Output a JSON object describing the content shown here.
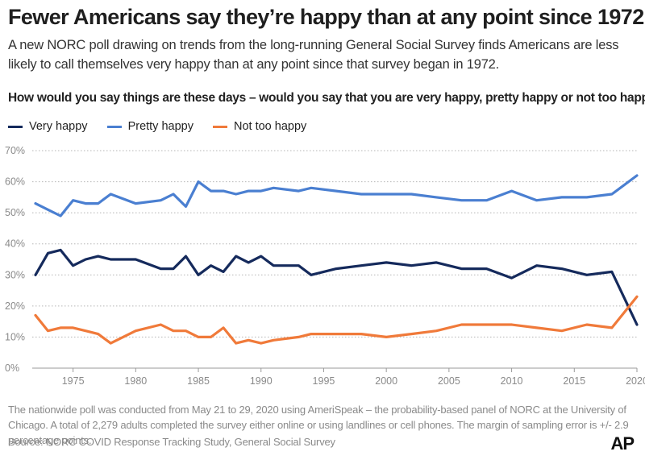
{
  "header": {
    "title": "Fewer Americans say they’re happy than at any point since 1972",
    "subtitle": "A new NORC poll drawing on trends from the long-running General Social Survey finds Americans are less likely to call themselves very happy than at any point since that survey began in 1972.",
    "question": "How would you say things are these days – would you say that you are very happy, pretty happy or not too happy?"
  },
  "footer": {
    "note": "The nationwide poll was conducted from May 21 to 29, 2020 using AmeriSpeak – the probability-based panel of NORC at the University of Chicago. A total of 2,279 adults completed the survey either online or using landlines or cell phones. The margin of sampling error is +/- 2.9 percentage points.",
    "source": "Source: NORC COVID Response Tracking Study, General Social Survey",
    "logo": "AP"
  },
  "chart_data": {
    "type": "line",
    "title": "Fewer Americans say they’re happy than at any point since 1972",
    "xlabel": "",
    "ylabel": "",
    "xlim": [
      1972,
      2020
    ],
    "ylim": [
      0,
      70
    ],
    "x_ticks": [
      1975,
      1980,
      1985,
      1990,
      1995,
      2000,
      2005,
      2010,
      2015,
      2020
    ],
    "y_ticks": [
      0,
      10,
      20,
      30,
      40,
      50,
      60,
      70
    ],
    "y_tick_labels": [
      "0%",
      "10%",
      "20%",
      "30%",
      "40%",
      "50%",
      "60%",
      "70%"
    ],
    "grid": "horizontal-dotted",
    "legend_position": "top-left",
    "series": [
      {
        "name": "Very happy",
        "color": "#152a5c",
        "points": [
          [
            1972,
            30
          ],
          [
            1973,
            37
          ],
          [
            1974,
            38
          ],
          [
            1975,
            33
          ],
          [
            1976,
            35
          ],
          [
            1977,
            36
          ],
          [
            1978,
            35
          ],
          [
            1980,
            35
          ],
          [
            1982,
            32
          ],
          [
            1983,
            32
          ],
          [
            1984,
            36
          ],
          [
            1985,
            30
          ],
          [
            1986,
            33
          ],
          [
            1987,
            31
          ],
          [
            1988,
            36
          ],
          [
            1989,
            34
          ],
          [
            1990,
            36
          ],
          [
            1991,
            33
          ],
          [
            1993,
            33
          ],
          [
            1994,
            30
          ],
          [
            1996,
            32
          ],
          [
            1998,
            33
          ],
          [
            2000,
            34
          ],
          [
            2002,
            33
          ],
          [
            2004,
            34
          ],
          [
            2006,
            32
          ],
          [
            2008,
            32
          ],
          [
            2010,
            29
          ],
          [
            2012,
            33
          ],
          [
            2014,
            32
          ],
          [
            2016,
            30
          ],
          [
            2018,
            31
          ],
          [
            2020,
            14
          ]
        ]
      },
      {
        "name": "Pretty happy",
        "color": "#4a7fd1",
        "points": [
          [
            1972,
            53
          ],
          [
            1973,
            51
          ],
          [
            1974,
            49
          ],
          [
            1975,
            54
          ],
          [
            1976,
            53
          ],
          [
            1977,
            53
          ],
          [
            1978,
            56
          ],
          [
            1980,
            53
          ],
          [
            1982,
            54
          ],
          [
            1983,
            56
          ],
          [
            1984,
            52
          ],
          [
            1985,
            60
          ],
          [
            1986,
            57
          ],
          [
            1987,
            57
          ],
          [
            1988,
            56
          ],
          [
            1989,
            57
          ],
          [
            1990,
            57
          ],
          [
            1991,
            58
          ],
          [
            1993,
            57
          ],
          [
            1994,
            58
          ],
          [
            1996,
            57
          ],
          [
            1998,
            56
          ],
          [
            2000,
            56
          ],
          [
            2002,
            56
          ],
          [
            2004,
            55
          ],
          [
            2006,
            54
          ],
          [
            2008,
            54
          ],
          [
            2010,
            57
          ],
          [
            2012,
            54
          ],
          [
            2014,
            55
          ],
          [
            2016,
            55
          ],
          [
            2018,
            56
          ],
          [
            2020,
            62
          ]
        ]
      },
      {
        "name": "Not too happy",
        "color": "#f07a3a",
        "points": [
          [
            1972,
            17
          ],
          [
            1973,
            12
          ],
          [
            1974,
            13
          ],
          [
            1975,
            13
          ],
          [
            1976,
            12
          ],
          [
            1977,
            11
          ],
          [
            1978,
            8
          ],
          [
            1980,
            12
          ],
          [
            1982,
            14
          ],
          [
            1983,
            12
          ],
          [
            1984,
            12
          ],
          [
            1985,
            10
          ],
          [
            1986,
            10
          ],
          [
            1987,
            13
          ],
          [
            1988,
            8
          ],
          [
            1989,
            9
          ],
          [
            1990,
            8
          ],
          [
            1991,
            9
          ],
          [
            1993,
            10
          ],
          [
            1994,
            11
          ],
          [
            1996,
            11
          ],
          [
            1998,
            11
          ],
          [
            2000,
            10
          ],
          [
            2002,
            11
          ],
          [
            2004,
            12
          ],
          [
            2006,
            14
          ],
          [
            2008,
            14
          ],
          [
            2010,
            14
          ],
          [
            2012,
            13
          ],
          [
            2014,
            12
          ],
          [
            2016,
            14
          ],
          [
            2018,
            13
          ],
          [
            2020,
            23
          ]
        ]
      }
    ]
  }
}
